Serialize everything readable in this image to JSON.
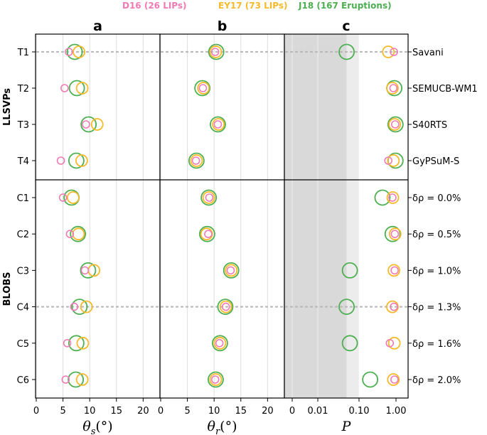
{
  "colors": {
    "D16": "#f07ab4",
    "EY17": "#f7b92a",
    "J18": "#4caf50",
    "grid": "#dddddd",
    "shade_dark": "#d9d9d9",
    "shade_light": "#ececec",
    "dotted": "#b8b8b8"
  },
  "chart_data": {
    "type": "scatter",
    "legend": [
      {
        "key": "D16",
        "label": "D16 (26 LIPs)"
      },
      {
        "key": "EY17",
        "label": "EY17 (73 LIPs)"
      },
      {
        "key": "J18",
        "label": "J18 (167 Eruptions)"
      }
    ],
    "rows": [
      "T1",
      "T2",
      "T3",
      "T4",
      "C1",
      "C2",
      "C3",
      "C4",
      "C5",
      "C6"
    ],
    "right_labels": [
      "Savani",
      "SEMUCB-WM1",
      "S40RTS",
      "GyPSuM-S",
      "δρ = 0.0%",
      "δρ = 0.5%",
      "δρ = 1.0%",
      "δρ = 1.3%",
      "δρ = 1.6%",
      "δρ = 2.0%"
    ],
    "groups": [
      "LLSVPs",
      "BLOBS"
    ],
    "panels": [
      {
        "letter": "a",
        "xlabel": "θs(°)",
        "xlim": [
          0,
          22
        ],
        "ticks": [
          0,
          5,
          10,
          15,
          20
        ],
        "tick_labels": [
          "0",
          "5",
          "10",
          "15",
          "20"
        ],
        "series": {
          "D16": [
            6.1,
            5.3,
            9.3,
            4.6,
            5.0,
            6.3,
            9.1,
            7.1,
            5.8,
            5.5
          ],
          "EY17": [
            8.0,
            8.6,
            11.4,
            8.5,
            6.9,
            7.9,
            10.8,
            9.4,
            8.7,
            8.6
          ],
          "J18": [
            7.2,
            7.6,
            9.8,
            7.5,
            6.6,
            7.8,
            9.7,
            8.1,
            7.5,
            7.4
          ]
        },
        "dotted_rows": [
          "T1",
          "C4"
        ]
      },
      {
        "letter": "b",
        "xlabel": "θr(°)",
        "xlim": [
          0,
          22
        ],
        "ticks": [
          0,
          5,
          10,
          15,
          20
        ],
        "tick_labels": [
          "0",
          "5",
          "10",
          "15",
          "20"
        ],
        "series": {
          "D16": [
            10.2,
            7.9,
            10.7,
            6.6,
            9.1,
            8.9,
            13.1,
            12.2,
            11.0,
            10.2
          ],
          "EY17": [
            10.3,
            8.0,
            10.8,
            6.7,
            9.0,
            8.6,
            13.2,
            12.2,
            11.1,
            10.3
          ],
          "J18": [
            10.4,
            7.8,
            10.7,
            6.7,
            9.0,
            8.7,
            13.2,
            12.1,
            11.1,
            10.3
          ]
        },
        "dotted_rows": [
          "T1",
          "C4"
        ]
      },
      {
        "letter": "c",
        "xlabel": "P",
        "scale": "symlog",
        "ticks": [
          0,
          0.01,
          0.1,
          1.0
        ],
        "tick_labels": [
          "0",
          "0.01",
          "0.10",
          "1.00"
        ],
        "shading": [
          {
            "from": 0,
            "to": 0.05,
            "shade": "dark"
          },
          {
            "from": 0.05,
            "to": 0.1,
            "shade": "light"
          }
        ],
        "series": {
          "D16": [
            0.88,
            0.85,
            0.95,
            0.62,
            0.8,
            0.93,
            0.92,
            0.88,
            0.68,
            0.91
          ],
          "EY17": [
            0.62,
            0.8,
            0.92,
            0.85,
            0.82,
            0.95,
            0.88,
            0.8,
            0.9,
            0.85
          ],
          "J18": [
            0.05,
            0.9,
            0.97,
            0.97,
            0.43,
            0.81,
            0.06,
            0.05,
            0.06,
            0.2
          ]
        },
        "dotted_rows": [
          "T1",
          "C4"
        ]
      }
    ]
  }
}
